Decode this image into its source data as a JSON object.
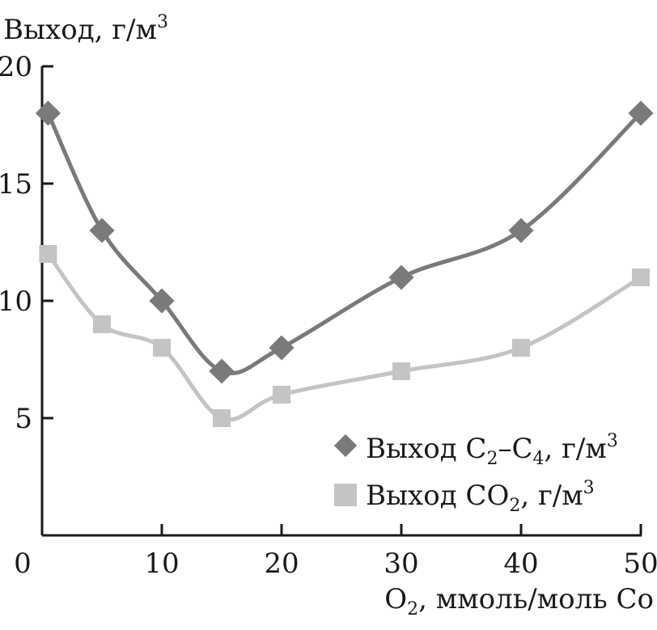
{
  "chart_data": {
    "type": "line",
    "ylabel_parts": {
      "main": "Выход, г/м",
      "sup": "3"
    },
    "xlabel_parts": {
      "pre": "O",
      "sub": "2",
      "post": ", ммоль/моль Co"
    },
    "xlim": [
      0,
      50
    ],
    "ylim": [
      0,
      20
    ],
    "x_ticks": [
      0,
      10,
      20,
      30,
      40,
      50
    ],
    "y_ticks": [
      5,
      10,
      15,
      20
    ],
    "grid": false,
    "legend_position": "bottom-right",
    "series": [
      {
        "legend": {
          "pre": "Выход C",
          "sub1": "2",
          "mid": "–C",
          "sub2": "4",
          "post": ", г/м",
          "sup": "3"
        },
        "marker": "diamond",
        "color": "#7a7a7a",
        "x": [
          0.5,
          5,
          10,
          15,
          20,
          30,
          40,
          50
        ],
        "y": [
          18,
          13,
          10,
          7,
          8,
          11,
          13,
          18
        ]
      },
      {
        "legend": {
          "pre": "Выход CO",
          "sub1": "2",
          "post": ", г/м",
          "sup": "3"
        },
        "marker": "square",
        "color": "#c4c4c4",
        "x": [
          0.5,
          5,
          10,
          15,
          20,
          30,
          40,
          50
        ],
        "y": [
          12,
          9,
          8,
          5,
          6,
          7,
          8,
          11
        ]
      }
    ]
  }
}
